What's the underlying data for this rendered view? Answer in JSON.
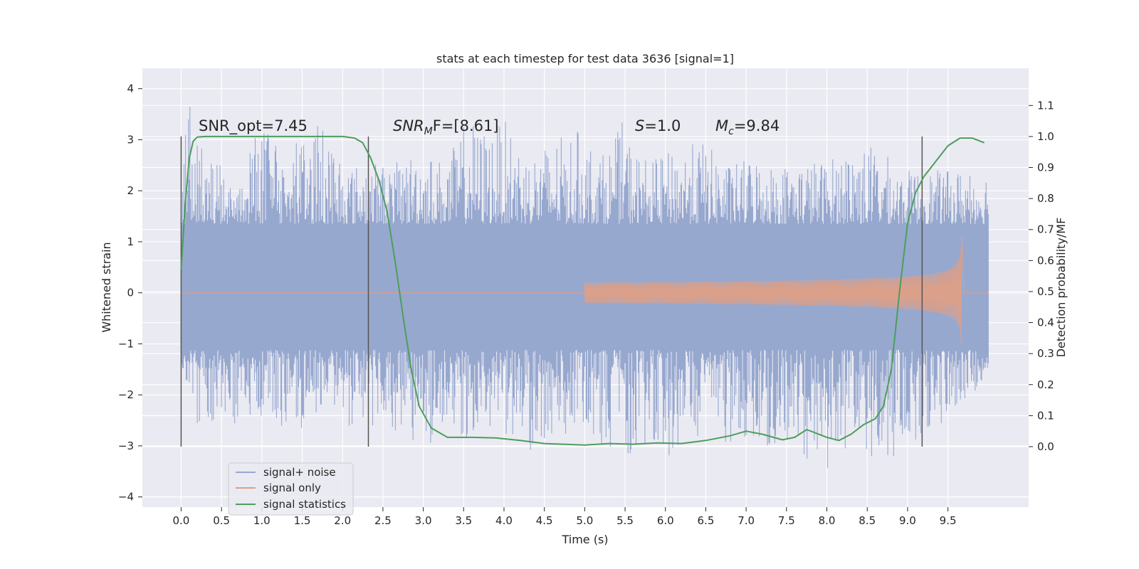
{
  "chart_data": {
    "type": "line",
    "title": "stats at each timestep for test data 3636 [signal=1]",
    "xlabel": "Time (s)",
    "ylabel": "Whitened strain",
    "y2label": "Detection probability/MF",
    "xlim": [
      -0.48,
      10.5
    ],
    "ylim": [
      -4.2,
      4.4
    ],
    "y2lim": [
      -0.195,
      1.22
    ],
    "x_ticks": [
      "0.0",
      "0.5",
      "1.0",
      "1.5",
      "2.0",
      "2.5",
      "3.0",
      "3.5",
      "4.0",
      "4.5",
      "5.0",
      "5.5",
      "6.0",
      "6.5",
      "7.0",
      "7.5",
      "8.0",
      "8.5",
      "9.0",
      "9.5"
    ],
    "y_ticks": [
      "4",
      "3",
      "2",
      "1",
      "0",
      "−1",
      "−2",
      "−3",
      "−4"
    ],
    "y2_ticks": [
      "1.1",
      "1.0",
      "0.9",
      "0.8",
      "0.7",
      "0.6",
      "0.5",
      "0.4",
      "0.3",
      "0.2",
      "0.1",
      "0.0"
    ],
    "grid": true,
    "legend_placement": "lower-left",
    "annotations": {
      "snr_opt": "SNR_opt=7.45",
      "snr_mf_base": "SNR",
      "snr_mf_sub": "M",
      "snr_mf_rest": "F=[8.61]",
      "s_var": "S",
      "s_val": "=1.0",
      "mc_var": "M",
      "mc_sub": "c",
      "mc_val": "=9.84"
    },
    "vlines_x": [
      0.0,
      2.32,
      9.18
    ],
    "noise_envelope": {
      "x_range": [
        0.0,
        10.0
      ],
      "upper_peak_samples": [
        [
          0.0,
          2.1
        ],
        [
          0.1,
          4.05
        ],
        [
          0.3,
          2.6
        ],
        [
          0.55,
          2.5
        ],
        [
          0.8,
          2.7
        ],
        [
          1.0,
          3.5
        ],
        [
          1.2,
          2.8
        ],
        [
          1.42,
          3.2
        ],
        [
          1.55,
          2.9
        ],
        [
          1.65,
          3.6
        ],
        [
          1.9,
          3.0
        ],
        [
          2.1,
          2.5
        ],
        [
          2.35,
          2.6
        ],
        [
          2.6,
          2.5
        ],
        [
          2.9,
          2.8
        ],
        [
          3.3,
          2.6
        ],
        [
          3.55,
          3.5
        ],
        [
          3.7,
          3.2
        ],
        [
          4.0,
          3.4
        ],
        [
          4.3,
          2.7
        ],
        [
          4.6,
          3.0
        ],
        [
          4.9,
          3.2
        ],
        [
          5.25,
          2.7
        ],
        [
          5.48,
          3.4
        ],
        [
          5.6,
          2.8
        ],
        [
          5.85,
          2.6
        ],
        [
          6.1,
          2.8
        ],
        [
          6.45,
          3.0
        ],
        [
          6.8,
          2.5
        ],
        [
          7.1,
          2.7
        ],
        [
          7.4,
          2.5
        ],
        [
          7.7,
          2.6
        ],
        [
          8.0,
          2.6
        ],
        [
          8.3,
          2.9
        ],
        [
          8.6,
          2.9
        ],
        [
          8.95,
          2.4
        ],
        [
          9.15,
          2.4
        ],
        [
          9.4,
          2.4
        ],
        [
          9.6,
          2.4
        ],
        [
          9.8,
          2.5
        ],
        [
          10.0,
          2.4
        ]
      ],
      "lower_peak_samples": [
        [
          0.0,
          -1.4
        ],
        [
          0.2,
          -2.6
        ],
        [
          0.45,
          -2.5
        ],
        [
          0.7,
          -2.6
        ],
        [
          1.0,
          -2.4
        ],
        [
          1.3,
          -2.9
        ],
        [
          1.6,
          -2.5
        ],
        [
          1.9,
          -2.6
        ],
        [
          2.2,
          -2.7
        ],
        [
          2.5,
          -2.6
        ],
        [
          2.8,
          -2.8
        ],
        [
          3.05,
          -3.3
        ],
        [
          3.4,
          -2.8
        ],
        [
          3.7,
          -3.0
        ],
        [
          4.0,
          -2.8
        ],
        [
          4.3,
          -3.1
        ],
        [
          4.6,
          -2.9
        ],
        [
          4.9,
          -2.7
        ],
        [
          5.2,
          -3.0
        ],
        [
          5.55,
          -3.2
        ],
        [
          5.8,
          -2.9
        ],
        [
          6.0,
          -3.3
        ],
        [
          6.3,
          -2.8
        ],
        [
          6.6,
          -2.9
        ],
        [
          6.9,
          -3.0
        ],
        [
          7.2,
          -2.8
        ],
        [
          7.3,
          -3.3
        ],
        [
          7.65,
          -3.0
        ],
        [
          7.85,
          -3.8
        ],
        [
          8.2,
          -3.1
        ],
        [
          8.45,
          -3.0
        ],
        [
          8.7,
          -3.55
        ],
        [
          9.0,
          -2.8
        ],
        [
          9.2,
          -3.0
        ],
        [
          9.5,
          -2.5
        ],
        [
          9.75,
          -2.1
        ],
        [
          10.0,
          -1.6
        ]
      ],
      "core_band": [
        -1.12,
        1.35
      ]
    },
    "series": [
      {
        "name": "signal+ noise",
        "color": "#97a8cf",
        "axis": "left"
      },
      {
        "name": "signal only",
        "color": "#dd9f86",
        "axis": "left",
        "chirp_start": 5.0,
        "chirp_peak_x": 9.67,
        "chirp_peak_amp": 1.2,
        "chirp_end": 9.7
      },
      {
        "name": "signal statistics",
        "color": "#4c9e5c",
        "axis": "right",
        "x": [
          0.0,
          0.05,
          0.1,
          0.15,
          0.2,
          0.3,
          0.5,
          1.0,
          1.5,
          2.0,
          2.15,
          2.25,
          2.35,
          2.45,
          2.55,
          2.65,
          2.75,
          2.85,
          2.95,
          3.1,
          3.3,
          3.6,
          3.9,
          4.2,
          4.5,
          5.0,
          5.3,
          5.6,
          5.9,
          6.2,
          6.5,
          6.8,
          7.0,
          7.2,
          7.45,
          7.6,
          7.75,
          7.85,
          8.0,
          8.15,
          8.3,
          8.45,
          8.6,
          8.7,
          8.8,
          8.9,
          9.0,
          9.1,
          9.2,
          9.35,
          9.5,
          9.65,
          9.8,
          9.95
        ],
        "values": [
          0.57,
          0.78,
          0.93,
          0.985,
          0.998,
          1.0,
          1.0,
          1.0,
          1.0,
          1.0,
          0.995,
          0.98,
          0.93,
          0.86,
          0.76,
          0.6,
          0.42,
          0.25,
          0.13,
          0.06,
          0.03,
          0.03,
          0.028,
          0.02,
          0.01,
          0.005,
          0.01,
          0.008,
          0.012,
          0.01,
          0.02,
          0.035,
          0.05,
          0.04,
          0.022,
          0.03,
          0.055,
          0.045,
          0.03,
          0.02,
          0.04,
          0.07,
          0.09,
          0.13,
          0.25,
          0.5,
          0.72,
          0.82,
          0.87,
          0.92,
          0.97,
          0.995,
          0.995,
          0.98
        ]
      }
    ]
  }
}
